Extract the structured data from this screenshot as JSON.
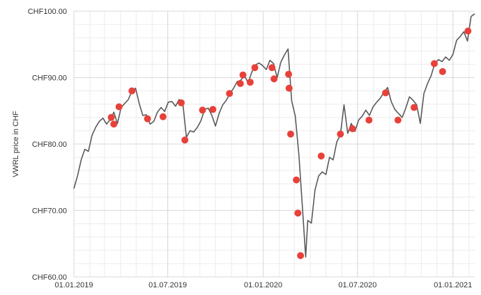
{
  "chart_data": {
    "type": "line",
    "title": "",
    "xlabel": "",
    "ylabel": "VWRL price in CHF",
    "ylim": [
      60,
      100
    ],
    "xlim": [
      "2019-01-01",
      "2021-02-12"
    ],
    "grid": true,
    "legend": "none",
    "y_ticks": [
      {
        "value": 60,
        "label": "CHF60.00"
      },
      {
        "value": 70,
        "label": "CHF70.00"
      },
      {
        "value": 80,
        "label": "CHF80.00"
      },
      {
        "value": 90,
        "label": "CHF90.00"
      },
      {
        "value": 100,
        "label": "CHF100.00"
      }
    ],
    "x_ticks": [
      {
        "value": "2019-01-01",
        "label": "01.01.2019"
      },
      {
        "value": "2019-07-01",
        "label": "01.07.2019"
      },
      {
        "value": "2020-01-01",
        "label": "01.01.2020"
      },
      {
        "value": "2020-07-01",
        "label": "01.07.2020"
      },
      {
        "value": "2021-01-01",
        "label": "01.01.2021"
      }
    ],
    "colors": {
      "price_line": "#5a5a5a",
      "marker": "#e8413a",
      "grid_major": "#d9d9d9",
      "grid_minor": "#ececec"
    },
    "series": [
      {
        "kind": "line",
        "points": [
          [
            "2019-01-01",
            73.3
          ],
          [
            "2019-01-08",
            75.2
          ],
          [
            "2019-01-15",
            77.6
          ],
          [
            "2019-01-22",
            79.2
          ],
          [
            "2019-01-29",
            78.9
          ],
          [
            "2019-02-05",
            81.3
          ],
          [
            "2019-02-12",
            82.5
          ],
          [
            "2019-02-19",
            83.4
          ],
          [
            "2019-02-26",
            83.9
          ],
          [
            "2019-03-05",
            83.0
          ],
          [
            "2019-03-12",
            83.7
          ],
          [
            "2019-03-19",
            84.8
          ],
          [
            "2019-03-26",
            83.1
          ],
          [
            "2019-04-02",
            85.5
          ],
          [
            "2019-04-09",
            86.1
          ],
          [
            "2019-04-16",
            86.7
          ],
          [
            "2019-04-23",
            88.0
          ],
          [
            "2019-04-30",
            88.4
          ],
          [
            "2019-05-07",
            86.1
          ],
          [
            "2019-05-14",
            84.3
          ],
          [
            "2019-05-21",
            84.4
          ],
          [
            "2019-05-28",
            83.0
          ],
          [
            "2019-06-04",
            83.4
          ],
          [
            "2019-06-11",
            84.8
          ],
          [
            "2019-06-18",
            85.5
          ],
          [
            "2019-06-25",
            84.9
          ],
          [
            "2019-07-02",
            86.3
          ],
          [
            "2019-07-09",
            86.4
          ],
          [
            "2019-07-16",
            85.7
          ],
          [
            "2019-07-23",
            86.7
          ],
          [
            "2019-07-30",
            86.2
          ],
          [
            "2019-08-06",
            81.0
          ],
          [
            "2019-08-13",
            82.0
          ],
          [
            "2019-08-20",
            81.8
          ],
          [
            "2019-08-27",
            82.5
          ],
          [
            "2019-09-03",
            83.5
          ],
          [
            "2019-09-10",
            85.2
          ],
          [
            "2019-09-17",
            85.4
          ],
          [
            "2019-09-24",
            84.3
          ],
          [
            "2019-10-01",
            82.7
          ],
          [
            "2019-10-08",
            84.6
          ],
          [
            "2019-10-15",
            85.9
          ],
          [
            "2019-10-22",
            86.6
          ],
          [
            "2019-10-29",
            87.6
          ],
          [
            "2019-11-05",
            88.4
          ],
          [
            "2019-11-12",
            89.4
          ],
          [
            "2019-11-19",
            89.6
          ],
          [
            "2019-11-26",
            90.3
          ],
          [
            "2019-12-03",
            89.2
          ],
          [
            "2019-12-10",
            90.8
          ],
          [
            "2019-12-17",
            91.9
          ],
          [
            "2019-12-24",
            92.2
          ],
          [
            "2019-12-31",
            91.8
          ],
          [
            "2020-01-07",
            91.2
          ],
          [
            "2020-01-14",
            92.6
          ],
          [
            "2020-01-21",
            92.1
          ],
          [
            "2020-01-28",
            90.0
          ],
          [
            "2020-02-04",
            92.3
          ],
          [
            "2020-02-11",
            93.4
          ],
          [
            "2020-02-18",
            94.3
          ],
          [
            "2020-02-25",
            86.5
          ],
          [
            "2020-03-03",
            84.2
          ],
          [
            "2020-03-10",
            78.3
          ],
          [
            "2020-03-17",
            70.2
          ],
          [
            "2020-03-20",
            66.5
          ],
          [
            "2020-03-23",
            63.0
          ],
          [
            "2020-03-27",
            68.5
          ],
          [
            "2020-04-03",
            68.1
          ],
          [
            "2020-04-10",
            73.1
          ],
          [
            "2020-04-17",
            75.2
          ],
          [
            "2020-04-24",
            75.8
          ],
          [
            "2020-05-01",
            75.4
          ],
          [
            "2020-05-08",
            78.0
          ],
          [
            "2020-05-15",
            77.6
          ],
          [
            "2020-05-22",
            80.3
          ],
          [
            "2020-05-29",
            81.4
          ],
          [
            "2020-06-05",
            85.9
          ],
          [
            "2020-06-12",
            81.6
          ],
          [
            "2020-06-19",
            83.1
          ],
          [
            "2020-06-26",
            81.9
          ],
          [
            "2020-07-03",
            83.6
          ],
          [
            "2020-07-10",
            84.2
          ],
          [
            "2020-07-17",
            85.1
          ],
          [
            "2020-07-24",
            84.3
          ],
          [
            "2020-07-31",
            85.6
          ],
          [
            "2020-08-07",
            86.3
          ],
          [
            "2020-08-14",
            86.9
          ],
          [
            "2020-08-21",
            87.8
          ],
          [
            "2020-08-28",
            88.5
          ],
          [
            "2020-09-04",
            86.4
          ],
          [
            "2020-09-11",
            85.2
          ],
          [
            "2020-09-18",
            84.6
          ],
          [
            "2020-09-25",
            84.0
          ],
          [
            "2020-10-02",
            85.4
          ],
          [
            "2020-10-09",
            87.1
          ],
          [
            "2020-10-16",
            86.6
          ],
          [
            "2020-10-23",
            85.9
          ],
          [
            "2020-10-30",
            83.1
          ],
          [
            "2020-11-06",
            87.6
          ],
          [
            "2020-11-13",
            89.1
          ],
          [
            "2020-11-20",
            90.3
          ],
          [
            "2020-11-27",
            92.1
          ],
          [
            "2020-12-04",
            92.7
          ],
          [
            "2020-12-11",
            92.4
          ],
          [
            "2020-12-18",
            93.1
          ],
          [
            "2020-12-25",
            92.6
          ],
          [
            "2021-01-01",
            93.5
          ],
          [
            "2021-01-08",
            95.6
          ],
          [
            "2021-01-15",
            96.2
          ],
          [
            "2021-01-22",
            96.9
          ],
          [
            "2021-01-29",
            95.5
          ],
          [
            "2021-02-05",
            99.2
          ],
          [
            "2021-02-12",
            99.6
          ]
        ]
      },
      {
        "kind": "markers",
        "points": [
          [
            "2019-03-14",
            84.0
          ],
          [
            "2019-03-19",
            83.0
          ],
          [
            "2019-03-29",
            85.6
          ],
          [
            "2019-04-23",
            88.0
          ],
          [
            "2019-05-23",
            83.8
          ],
          [
            "2019-06-22",
            84.1
          ],
          [
            "2019-07-27",
            86.2
          ],
          [
            "2019-08-03",
            80.6
          ],
          [
            "2019-09-06",
            85.1
          ],
          [
            "2019-09-26",
            85.2
          ],
          [
            "2019-10-28",
            87.6
          ],
          [
            "2019-11-18",
            89.1
          ],
          [
            "2019-11-23",
            90.4
          ],
          [
            "2019-12-07",
            89.3
          ],
          [
            "2019-12-16",
            91.5
          ],
          [
            "2020-01-18",
            91.5
          ],
          [
            "2020-01-22",
            89.8
          ],
          [
            "2020-02-19",
            90.5
          ],
          [
            "2020-02-20",
            88.4
          ],
          [
            "2020-02-23",
            81.5
          ],
          [
            "2020-03-05",
            74.6
          ],
          [
            "2020-03-08",
            69.6
          ],
          [
            "2020-03-13",
            63.2
          ],
          [
            "2020-04-22",
            78.2
          ],
          [
            "2020-05-29",
            81.5
          ],
          [
            "2020-06-21",
            82.3
          ],
          [
            "2020-07-23",
            83.6
          ],
          [
            "2020-08-24",
            87.7
          ],
          [
            "2020-09-17",
            83.6
          ],
          [
            "2020-10-18",
            85.5
          ],
          [
            "2020-11-26",
            92.1
          ],
          [
            "2020-12-12",
            90.9
          ],
          [
            "2021-01-30",
            97.0
          ]
        ]
      }
    ]
  }
}
